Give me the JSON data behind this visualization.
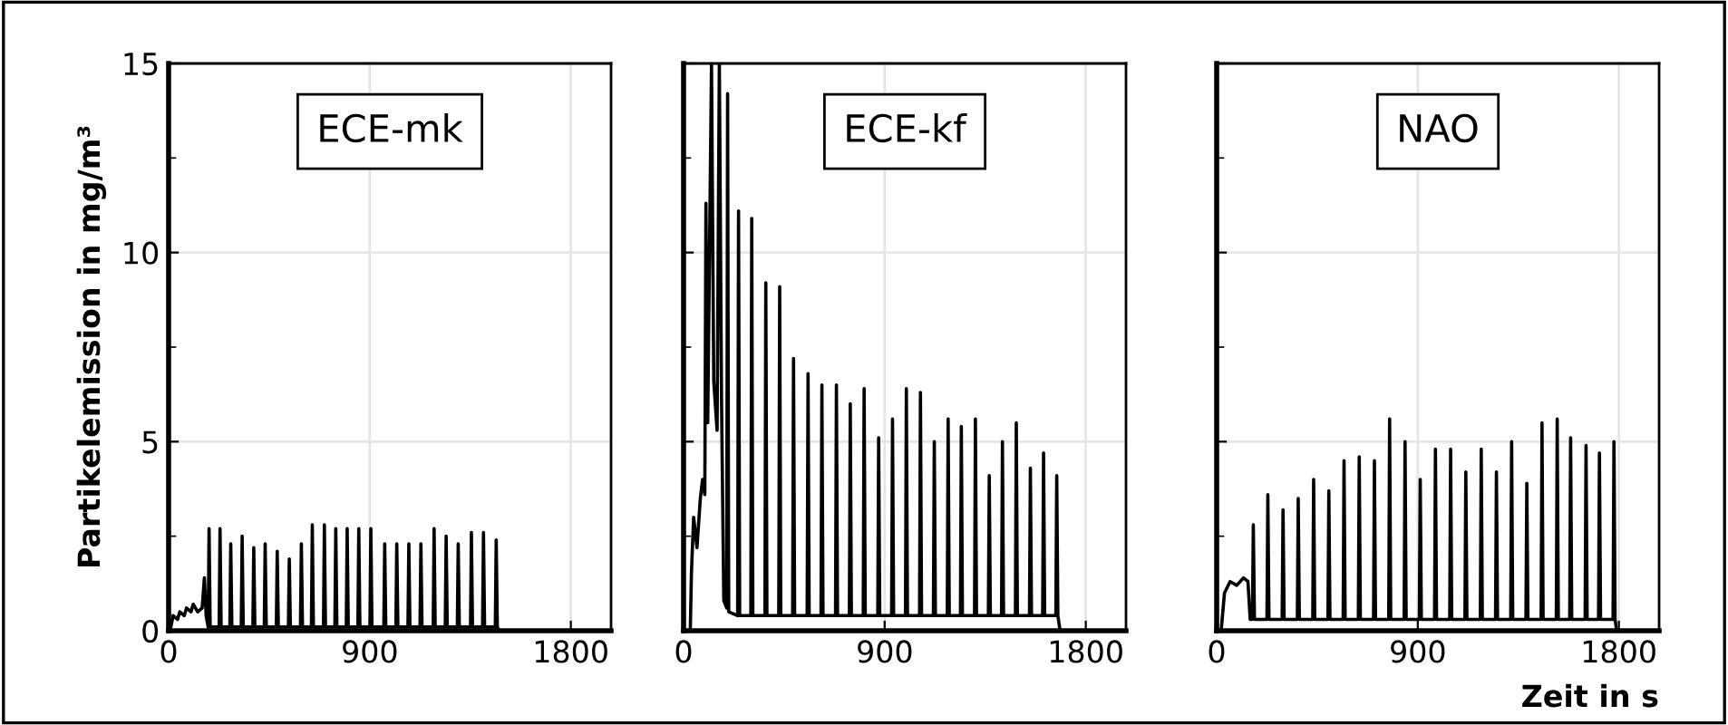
{
  "chart_data": [
    {
      "type": "line",
      "ylabel": "Partikelemission in mg/m³",
      "annotations": [
        "ECE-mk"
      ],
      "color": "#000000",
      "xlim": [
        0,
        1980
      ],
      "xticks": [
        0,
        900,
        1800
      ],
      "ylim": [
        0,
        15
      ],
      "yticks": [
        0,
        {
          "value": 2.5,
          "label": null
        },
        5,
        {
          "value": 7.5,
          "label": null
        },
        10,
        {
          "value": 12.5,
          "label": null
        },
        15
      ],
      "grid": true,
      "x": [
        0,
        10,
        20,
        40,
        50,
        70,
        80,
        100,
        110,
        130,
        150,
        160,
        168,
        177,
        181,
        186,
        226,
        230,
        235,
        274,
        278,
        283,
        325,
        329,
        334,
        377,
        381,
        386,
        428,
        432,
        437,
        482,
        486,
        491,
        536,
        540,
        545,
        590,
        594,
        599,
        639,
        643,
        648,
        693,
        697,
        702,
        744,
        748,
        753,
        795,
        799,
        804,
        847,
        851,
        856,
        901,
        905,
        910,
        963,
        967,
        972,
        1017,
        1021,
        1026,
        1071,
        1075,
        1080,
        1125,
        1129,
        1134,
        1184,
        1188,
        1193,
        1238,
        1242,
        1247,
        1292,
        1296,
        1301,
        1351,
        1355,
        1360,
        1405,
        1409,
        1414,
        1462,
        1466,
        1471,
        1480
      ],
      "values": [
        0,
        0.1,
        0.4,
        0.3,
        0.5,
        0.4,
        0.6,
        0.5,
        0.7,
        0.5,
        0.6,
        1.4,
        0.4,
        0.1,
        2.7,
        0.1,
        0.1,
        2.7,
        0.1,
        0.1,
        2.3,
        0.1,
        0.1,
        2.5,
        0.1,
        0.1,
        2.2,
        0.1,
        0.1,
        2.3,
        0.1,
        0.1,
        2.1,
        0.1,
        0.1,
        1.9,
        0.1,
        0.1,
        2.3,
        0.1,
        0.1,
        2.8,
        0.1,
        0.1,
        2.8,
        0.1,
        0.1,
        2.7,
        0.1,
        0.1,
        2.7,
        0.1,
        0.1,
        2.7,
        0.1,
        0.1,
        2.7,
        0.1,
        0.1,
        2.3,
        0.1,
        0.1,
        2.3,
        0.1,
        0.1,
        2.3,
        0.1,
        0.1,
        2.3,
        0.1,
        0.1,
        2.7,
        0.1,
        0.1,
        2.5,
        0.1,
        0.1,
        2.3,
        0.1,
        0.1,
        2.6,
        0.1,
        0.1,
        2.6,
        0.1,
        0.1,
        2.4,
        0.1,
        0
      ]
    },
    {
      "type": "line",
      "annotations": [
        "ECE-kf"
      ],
      "color": "#000000",
      "xlim": [
        0,
        1980
      ],
      "xticks": [
        0,
        900,
        1800
      ],
      "ylim": [
        0,
        15
      ],
      "yticks": [
        0,
        {
          "value": 2.5,
          "label": null
        },
        5,
        {
          "value": 7.5,
          "label": null
        },
        10,
        {
          "value": 12.5,
          "label": null
        },
        15
      ],
      "grid": true,
      "tick_labels": "x",
      "x": [
        0,
        30,
        35,
        45,
        60,
        75,
        85,
        95,
        100,
        108,
        125,
        135,
        150,
        160,
        170,
        180,
        193,
        197,
        202,
        242,
        246,
        251,
        301,
        305,
        310,
        364,
        368,
        373,
        426,
        430,
        435,
        488,
        492,
        497,
        553,
        557,
        562,
        615,
        619,
        624,
        680,
        684,
        689,
        742,
        746,
        751,
        804,
        808,
        813,
        869,
        873,
        878,
        931,
        935,
        940,
        993,
        997,
        1002,
        1056,
        1060,
        1065,
        1118,
        1122,
        1127,
        1180,
        1184,
        1189,
        1239,
        1243,
        1248,
        1302,
        1306,
        1311,
        1364,
        1368,
        1373,
        1423,
        1427,
        1432,
        1485,
        1489,
        1494,
        1548,
        1552,
        1557,
        1607,
        1611,
        1616,
        1666,
        1670,
        1675,
        1685
      ],
      "values": [
        0,
        0,
        1.5,
        3.0,
        2.2,
        3.5,
        4.0,
        3.6,
        11.3,
        5.5,
        15,
        6.6,
        5.3,
        15,
        6.0,
        0.8,
        0.6,
        14.2,
        0.5,
        0.4,
        11.1,
        0.4,
        0.4,
        10.9,
        0.4,
        0.4,
        9.2,
        0.4,
        0.4,
        9.1,
        0.4,
        0.4,
        7.2,
        0.4,
        0.4,
        6.8,
        0.4,
        0.4,
        6.5,
        0.4,
        0.4,
        6.5,
        0.4,
        0.4,
        6.0,
        0.4,
        0.4,
        6.4,
        0.4,
        0.4,
        5.1,
        0.4,
        0.4,
        5.6,
        0.4,
        0.4,
        6.4,
        0.4,
        0.4,
        6.3,
        0.4,
        0.4,
        5.0,
        0.4,
        0.4,
        5.6,
        0.4,
        0.4,
        5.4,
        0.4,
        0.4,
        5.6,
        0.4,
        0.4,
        4.1,
        0.4,
        0.4,
        5.0,
        0.4,
        0.4,
        5.5,
        0.4,
        0.4,
        4.3,
        0.4,
        0.4,
        4.7,
        0.4,
        0.4,
        4.1,
        0.4,
        0
      ]
    },
    {
      "type": "line",
      "xlabel": "Zeit in s",
      "annotations": [
        "NAO"
      ],
      "color": "#000000",
      "xlim": [
        0,
        1980
      ],
      "xticks": [
        0,
        900,
        1800
      ],
      "ylim": [
        0,
        15
      ],
      "yticks": [
        0,
        {
          "value": 2.5,
          "label": null
        },
        5,
        {
          "value": 7.5,
          "label": null
        },
        10,
        {
          "value": 12.5,
          "label": null
        },
        15
      ],
      "grid": true,
      "tick_labels": "x",
      "x": [
        0,
        20,
        35,
        60,
        90,
        120,
        140,
        150,
        160,
        164,
        169,
        225,
        229,
        234,
        293,
        297,
        302,
        361,
        365,
        370,
        430,
        434,
        439,
        498,
        502,
        507,
        566,
        570,
        575,
        634,
        638,
        643,
        702,
        706,
        711,
        770,
        774,
        779,
        839,
        843,
        848,
        907,
        911,
        916,
        975,
        979,
        984,
        1043,
        1047,
        1052,
        1111,
        1115,
        1120,
        1180,
        1184,
        1189,
        1248,
        1252,
        1257,
        1316,
        1320,
        1325,
        1384,
        1388,
        1393,
        1452,
        1456,
        1461,
        1520,
        1524,
        1529,
        1580,
        1584,
        1589,
        1649,
        1653,
        1658,
        1709,
        1713,
        1718,
        1774,
        1778,
        1783,
        1790
      ],
      "values": [
        0,
        0,
        1.0,
        1.3,
        1.2,
        1.4,
        1.3,
        0.3,
        0.3,
        2.8,
        0.3,
        0.3,
        3.6,
        0.3,
        0.3,
        3.2,
        0.3,
        0.3,
        3.5,
        0.3,
        0.3,
        4.0,
        0.3,
        0.3,
        3.7,
        0.3,
        0.3,
        4.5,
        0.3,
        0.3,
        4.6,
        0.3,
        0.3,
        4.5,
        0.3,
        0.3,
        5.6,
        0.3,
        0.3,
        5.0,
        0.3,
        0.3,
        4.0,
        0.3,
        0.3,
        4.8,
        0.3,
        0.3,
        4.8,
        0.3,
        0.3,
        4.2,
        0.3,
        0.3,
        4.8,
        0.3,
        0.3,
        4.2,
        0.3,
        0.3,
        5.0,
        0.3,
        0.3,
        3.9,
        0.3,
        0.3,
        5.5,
        0.3,
        0.3,
        5.6,
        0.3,
        0.3,
        5.1,
        0.3,
        0.3,
        4.9,
        0.3,
        0.3,
        4.7,
        0.3,
        0.3,
        5.0,
        0.3,
        0
      ]
    }
  ]
}
